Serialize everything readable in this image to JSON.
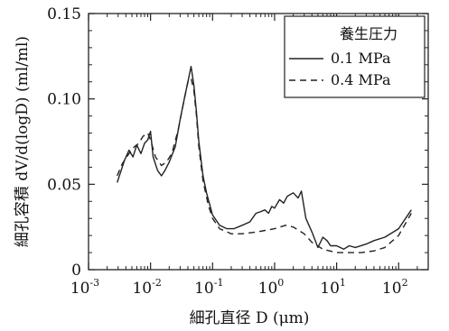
{
  "chart_data": {
    "type": "line",
    "xlabel": "細孔直径 D (μm)",
    "ylabel": "細孔容積 dV/d(logD) (ml/ml)",
    "x_scale": "log",
    "xlim": [
      0.001,
      300
    ],
    "ylim": [
      0,
      0.15
    ],
    "x_ticks": [
      {
        "base": "10",
        "exp": "-3"
      },
      {
        "base": "10",
        "exp": "-2"
      },
      {
        "base": "10",
        "exp": "-1"
      },
      {
        "base": "10",
        "exp": "0"
      },
      {
        "base": "10",
        "exp": "1"
      },
      {
        "base": "10",
        "exp": "2"
      }
    ],
    "y_ticks": [
      "0",
      "0.05",
      "0.10",
      "0.15"
    ],
    "legend": {
      "title": "養生圧力",
      "placement": "top-right"
    },
    "grid": false,
    "series": [
      {
        "name": "0.1 MPa",
        "style": "solid",
        "color": "#222222",
        "points": [
          [
            0.0029,
            0.051
          ],
          [
            0.0038,
            0.064
          ],
          [
            0.0045,
            0.07
          ],
          [
            0.0052,
            0.066
          ],
          [
            0.006,
            0.073
          ],
          [
            0.007,
            0.068
          ],
          [
            0.008,
            0.074
          ],
          [
            0.009,
            0.076
          ],
          [
            0.01,
            0.081
          ],
          [
            0.011,
            0.066
          ],
          [
            0.013,
            0.058
          ],
          [
            0.015,
            0.055
          ],
          [
            0.017,
            0.058
          ],
          [
            0.02,
            0.063
          ],
          [
            0.025,
            0.072
          ],
          [
            0.03,
            0.088
          ],
          [
            0.035,
            0.1
          ],
          [
            0.04,
            0.11
          ],
          [
            0.045,
            0.119
          ],
          [
            0.05,
            0.108
          ],
          [
            0.055,
            0.092
          ],
          [
            0.06,
            0.075
          ],
          [
            0.07,
            0.055
          ],
          [
            0.08,
            0.045
          ],
          [
            0.1,
            0.032
          ],
          [
            0.13,
            0.026
          ],
          [
            0.17,
            0.024
          ],
          [
            0.22,
            0.024
          ],
          [
            0.3,
            0.026
          ],
          [
            0.4,
            0.028
          ],
          [
            0.5,
            0.033
          ],
          [
            0.6,
            0.034
          ],
          [
            0.7,
            0.035
          ],
          [
            0.8,
            0.033
          ],
          [
            0.9,
            0.037
          ],
          [
            1.0,
            0.036
          ],
          [
            1.2,
            0.041
          ],
          [
            1.4,
            0.039
          ],
          [
            1.6,
            0.043
          ],
          [
            2.0,
            0.045
          ],
          [
            2.4,
            0.042
          ],
          [
            2.7,
            0.046
          ],
          [
            3.2,
            0.03
          ],
          [
            4.0,
            0.022
          ],
          [
            5.0,
            0.013
          ],
          [
            6.0,
            0.019
          ],
          [
            7.0,
            0.017
          ],
          [
            8.0,
            0.014
          ],
          [
            10.0,
            0.014
          ],
          [
            13.0,
            0.012
          ],
          [
            16.0,
            0.014
          ],
          [
            20.0,
            0.013
          ],
          [
            30.0,
            0.015
          ],
          [
            40.0,
            0.017
          ],
          [
            60.0,
            0.019
          ],
          [
            100.0,
            0.024
          ],
          [
            160.0,
            0.035
          ]
        ]
      },
      {
        "name": "0.4 MPa",
        "style": "dashed",
        "color": "#222222",
        "points": [
          [
            0.0029,
            0.055
          ],
          [
            0.0035,
            0.062
          ],
          [
            0.0045,
            0.068
          ],
          [
            0.0055,
            0.072
          ],
          [
            0.0065,
            0.074
          ],
          [
            0.0075,
            0.078
          ],
          [
            0.009,
            0.08
          ],
          [
            0.01,
            0.076
          ],
          [
            0.012,
            0.066
          ],
          [
            0.015,
            0.061
          ],
          [
            0.018,
            0.063
          ],
          [
            0.022,
            0.068
          ],
          [
            0.028,
            0.082
          ],
          [
            0.035,
            0.1
          ],
          [
            0.04,
            0.11
          ],
          [
            0.045,
            0.112
          ],
          [
            0.05,
            0.105
          ],
          [
            0.055,
            0.09
          ],
          [
            0.06,
            0.072
          ],
          [
            0.07,
            0.052
          ],
          [
            0.085,
            0.038
          ],
          [
            0.1,
            0.03
          ],
          [
            0.13,
            0.024
          ],
          [
            0.2,
            0.021
          ],
          [
            0.3,
            0.021
          ],
          [
            0.5,
            0.022
          ],
          [
            0.7,
            0.023
          ],
          [
            1.0,
            0.024
          ],
          [
            1.5,
            0.026
          ],
          [
            2.0,
            0.025
          ],
          [
            3.0,
            0.021
          ],
          [
            4.0,
            0.016
          ],
          [
            6.0,
            0.012
          ],
          [
            10.0,
            0.01
          ],
          [
            15.0,
            0.01
          ],
          [
            25.0,
            0.01
          ],
          [
            40.0,
            0.011
          ],
          [
            60.0,
            0.013
          ],
          [
            100.0,
            0.02
          ],
          [
            160.0,
            0.033
          ]
        ]
      }
    ]
  }
}
